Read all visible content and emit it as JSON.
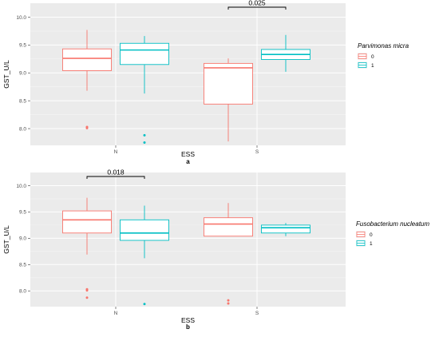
{
  "chart_data": [
    {
      "type": "boxplot",
      "panel_label": "a",
      "xlabel": "ESS",
      "ylabel": "GST_U/L",
      "categories": [
        "N",
        "S"
      ],
      "yticks": [
        8.0,
        8.5,
        9.0,
        9.5,
        10.0
      ],
      "ylim": [
        7.7,
        10.25
      ],
      "grid": true,
      "legend": {
        "title": "Parvimonas micra",
        "position": "right",
        "entries": [
          "0",
          "1"
        ]
      },
      "colors": {
        "0": "#F8766D",
        "1": "#00BFC4"
      },
      "series": [
        {
          "name": "0",
          "boxes": [
            {
              "category": "N",
              "min": 8.68,
              "q1": 9.04,
              "median": 9.26,
              "q3": 9.43,
              "max": 9.77,
              "outliers": [
                8.03,
                8.01
              ]
            },
            {
              "category": "S",
              "min": 7.77,
              "q1": 8.44,
              "median": 9.09,
              "q3": 9.17,
              "max": 9.26,
              "outliers": []
            }
          ]
        },
        {
          "name": "1",
          "boxes": [
            {
              "category": "N",
              "min": 8.63,
              "q1": 9.15,
              "median": 9.41,
              "q3": 9.53,
              "max": 9.66,
              "outliers": [
                7.88,
                7.75
              ]
            },
            {
              "category": "S",
              "min": 9.02,
              "q1": 9.24,
              "median": 9.33,
              "q3": 9.42,
              "max": 9.68,
              "outliers": []
            }
          ]
        }
      ],
      "annotations": [
        {
          "category": "S",
          "label": "0.025"
        }
      ]
    },
    {
      "type": "boxplot",
      "panel_label": "b",
      "xlabel": "ESS",
      "ylabel": "GST_U/L",
      "categories": [
        "N",
        "S"
      ],
      "yticks": [
        8.0,
        8.5,
        9.0,
        9.5,
        10.0
      ],
      "ylim": [
        7.7,
        10.25
      ],
      "grid": true,
      "legend": {
        "title": "Fusobacterium nucleatum",
        "position": "right",
        "entries": [
          "0",
          "1"
        ]
      },
      "colors": {
        "0": "#F8766D",
        "1": "#00BFC4"
      },
      "series": [
        {
          "name": "0",
          "boxes": [
            {
              "category": "N",
              "min": 8.69,
              "q1": 9.1,
              "median": 9.35,
              "q3": 9.52,
              "max": 9.77,
              "outliers": [
                8.03,
                8.01,
                7.87
              ]
            },
            {
              "category": "S",
              "min": 9.04,
              "q1": 9.04,
              "median": 9.27,
              "q3": 9.39,
              "max": 9.67,
              "outliers": [
                7.82,
                7.76
              ]
            }
          ]
        },
        {
          "name": "1",
          "boxes": [
            {
              "category": "N",
              "min": 8.62,
              "q1": 8.96,
              "median": 9.1,
              "q3": 9.35,
              "max": 9.62,
              "outliers": [
                7.75
              ]
            },
            {
              "category": "S",
              "min": 9.04,
              "q1": 9.1,
              "median": 9.2,
              "q3": 9.25,
              "max": 9.29,
              "outliers": []
            }
          ]
        }
      ],
      "annotations": [
        {
          "category": "N",
          "label": "0.018"
        }
      ]
    }
  ]
}
